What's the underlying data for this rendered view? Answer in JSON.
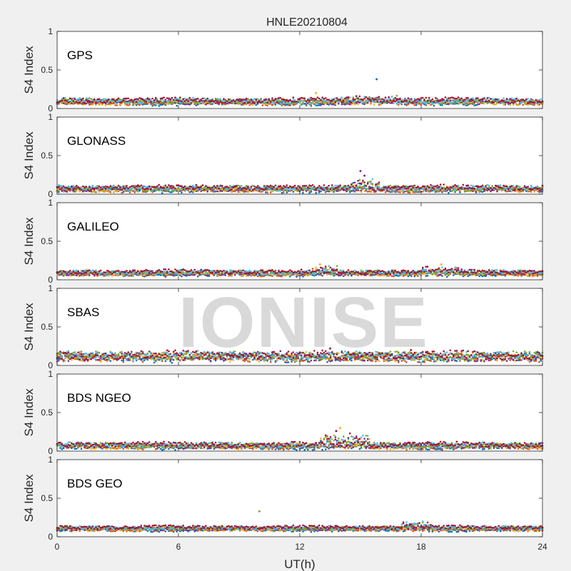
{
  "figure": {
    "title": "HNLE20210804",
    "xlabel": "UT(h)",
    "watermark": "IONISE",
    "palette": [
      "#0072bd",
      "#d95319",
      "#edb120",
      "#7e2f8e",
      "#77ac30",
      "#4dbeee",
      "#a2142f"
    ]
  },
  "chart_data": [
    {
      "type": "scatter",
      "panel_label": "GPS",
      "ylabel": "S4 Index",
      "xlim": [
        0,
        24
      ],
      "ylim": [
        0,
        1
      ],
      "xticks": [
        0,
        6,
        12,
        18,
        24
      ],
      "yticks": [
        0,
        0.5,
        1
      ],
      "ytick_labels": [
        "0",
        "0.5",
        "1"
      ],
      "baseline": 0.08,
      "spread": 0.03,
      "spikes": [
        {
          "x": 15.8,
          "y": 0.38,
          "series": 0
        },
        {
          "x": 12.8,
          "y": 0.2,
          "series": 2
        }
      ],
      "bumps": [
        {
          "x0": 14,
          "x1": 17,
          "y": 0.12
        }
      ]
    },
    {
      "type": "scatter",
      "panel_label": "GLONASS",
      "ylabel": "S4 Index",
      "xlim": [
        0,
        24
      ],
      "ylim": [
        0,
        1
      ],
      "xticks": [
        0,
        6,
        12,
        18,
        24
      ],
      "yticks": [
        0,
        0.5,
        1
      ],
      "ytick_labels": [
        "0",
        "0.5",
        "1"
      ],
      "baseline": 0.06,
      "spread": 0.03,
      "spikes": [
        {
          "x": 15,
          "y": 0.3,
          "series": 3
        },
        {
          "x": 15.2,
          "y": 0.24,
          "series": 3
        }
      ],
      "bumps": [
        {
          "x0": 14.5,
          "x1": 16,
          "y": 0.15
        }
      ]
    },
    {
      "type": "scatter",
      "panel_label": "GALILEO",
      "ylabel": "S4 Index",
      "xlim": [
        0,
        24
      ],
      "ylim": [
        0,
        1
      ],
      "xticks": [
        0,
        6,
        12,
        18,
        24
      ],
      "yticks": [
        0,
        0.5,
        1
      ],
      "ytick_labels": [
        "0",
        "0.5",
        "1"
      ],
      "baseline": 0.08,
      "spread": 0.025,
      "spikes": [
        {
          "x": 13,
          "y": 0.2,
          "series": 2
        },
        {
          "x": 19,
          "y": 0.2,
          "series": 2
        }
      ],
      "bumps": [
        {
          "x0": 12.5,
          "x1": 14,
          "y": 0.15
        },
        {
          "x0": 18,
          "x1": 20,
          "y": 0.14
        }
      ]
    },
    {
      "type": "scatter",
      "panel_label": "SBAS",
      "ylabel": "S4 Index",
      "xlim": [
        0,
        24
      ],
      "ylim": [
        0,
        1
      ],
      "xticks": [
        0,
        6,
        12,
        18,
        24
      ],
      "yticks": [
        0,
        0.5,
        1
      ],
      "ytick_labels": [
        "0",
        "0.5",
        "1"
      ],
      "baseline": 0.1,
      "spread": 0.05,
      "spikes": [
        {
          "x": 13.5,
          "y": 0.22,
          "series": 6
        },
        {
          "x": 17.5,
          "y": 0.2,
          "series": 6
        }
      ],
      "bumps": []
    },
    {
      "type": "scatter",
      "panel_label": "BDS NGEO",
      "ylabel": "S4 Index",
      "xlim": [
        0,
        24
      ],
      "ylim": [
        0,
        1
      ],
      "xticks": [
        0,
        6,
        12,
        18,
        24
      ],
      "yticks": [
        0,
        0.5,
        1
      ],
      "ytick_labels": [
        "0",
        "0.5",
        "1"
      ],
      "baseline": 0.06,
      "spread": 0.03,
      "spikes": [
        {
          "x": 14,
          "y": 0.3,
          "series": 2
        },
        {
          "x": 13.8,
          "y": 0.26,
          "series": 6
        }
      ],
      "bumps": [
        {
          "x0": 13,
          "x1": 15.5,
          "y": 0.18
        }
      ]
    },
    {
      "type": "scatter",
      "panel_label": "BDS GEO",
      "ylabel": "S4 Index",
      "xlim": [
        0,
        24
      ],
      "ylim": [
        0,
        1
      ],
      "xticks": [
        0,
        6,
        12,
        18,
        24
      ],
      "yticks": [
        0,
        0.5,
        1
      ],
      "ytick_labels": [
        "0",
        "0.5",
        "1"
      ],
      "xtick_labels": [
        "0",
        "6",
        "12",
        "18",
        "24"
      ],
      "baseline": 0.1,
      "spread": 0.02,
      "spikes": [
        {
          "x": 10,
          "y": 0.33,
          "series": 4
        }
      ],
      "bumps": [
        {
          "x0": 17,
          "x1": 18.5,
          "y": 0.17
        }
      ]
    }
  ]
}
